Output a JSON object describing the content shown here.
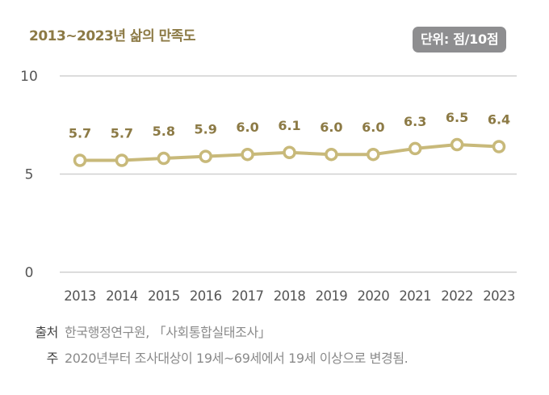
{
  "header": {
    "title": "2013~2023년 삶의 만족도",
    "unit_badge": "단위: 점/10점"
  },
  "footer": {
    "source_label": "출처",
    "source_text": "한국행정연구원, 「사회통합실태조사」",
    "note_label": "주",
    "note_text": "2020년부터 조사대상이 19세~69세에서 19세 이상으로 변경됨."
  },
  "colors": {
    "line": "#c8b97a",
    "label": "#8c7a45",
    "grid": "#d0d0d0",
    "badge": "#8e8e90"
  },
  "chart_data": {
    "type": "line",
    "title": "2013~2023년 삶의 만족도",
    "xlabel": "",
    "ylabel": "단위: 점/10점",
    "categories": [
      "2013",
      "2014",
      "2015",
      "2016",
      "2017",
      "2018",
      "2019",
      "2020",
      "2021",
      "2022",
      "2023"
    ],
    "series": [
      {
        "name": "삶의 만족도",
        "values": [
          5.7,
          5.7,
          5.8,
          5.9,
          6.0,
          6.1,
          6.0,
          6.0,
          6.3,
          6.5,
          6.4
        ]
      }
    ],
    "value_labels": [
      "5.7",
      "5.7",
      "5.8",
      "5.9",
      "6.0",
      "6.1",
      "6.0",
      "6.0",
      "6.3",
      "6.5",
      "6.4"
    ],
    "yticks": [
      "0",
      "5",
      "10"
    ],
    "ylim": [
      0,
      10
    ],
    "grid": true,
    "legend": false
  }
}
